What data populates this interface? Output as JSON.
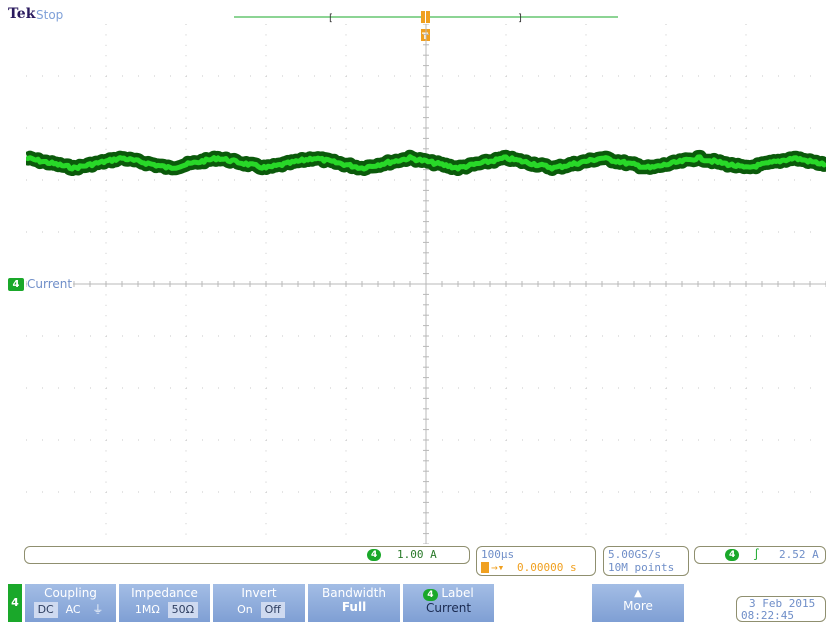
{
  "brand": "Tek",
  "run_status": "Stop",
  "channel": {
    "number": "4",
    "label": "Current",
    "color": "#1aa82a"
  },
  "readouts": {
    "vertical_scale": "1.00 A",
    "time_per_div": "100µs",
    "trigger_delay": "0.00000 s",
    "sample_rate": "5.00GS/s",
    "record_length": "10M points",
    "trigger_level": "2.52 A"
  },
  "menu": {
    "coupling": {
      "title": "Coupling",
      "options": [
        "DC",
        "AC",
        "⏚"
      ]
    },
    "impedance": {
      "title": "Impedance",
      "options": [
        "1MΩ",
        "50Ω"
      ],
      "selected": "50Ω"
    },
    "invert": {
      "title": "Invert",
      "options": [
        "On",
        "Off"
      ],
      "selected": "Off"
    },
    "bandwidth": {
      "title": "Bandwidth",
      "value": "Full"
    },
    "label": {
      "title": "Label",
      "value": "Current"
    },
    "more": {
      "title": "More"
    }
  },
  "datetime": {
    "date": "3 Feb 2015",
    "time": "08:22:45"
  },
  "colors": {
    "trace_light": "#22d022",
    "trace_dark": "#0b4a0b",
    "trigger": "#f0a020",
    "accent_blue": "#8fb0e0"
  }
}
